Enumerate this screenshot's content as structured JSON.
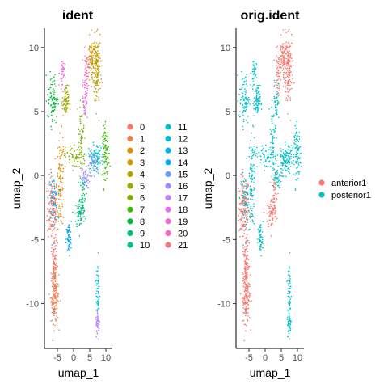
{
  "chart_data": [
    {
      "type": "scatter",
      "title": "ident",
      "xlabel": "umap_1",
      "ylabel": "umap_2",
      "xlim": [
        -9,
        12
      ],
      "ylim": [
        -13.5,
        11.5
      ],
      "xticks": [
        -5,
        0,
        5,
        10
      ],
      "xtick_labels": [
        "-5",
        "0",
        "5",
        "10"
      ],
      "yticks": [
        -10,
        -5,
        0,
        5,
        10
      ],
      "ytick_labels": [
        "-10",
        "-5",
        "0",
        "5",
        "10"
      ],
      "grid": false,
      "legend_placement": "right",
      "legend_columns": 2,
      "series": [
        {
          "name": "0",
          "color": "#F8766D",
          "cx": -6.5,
          "cy": -2.2
        },
        {
          "name": "1",
          "color": "#EF7F49",
          "cx": -5.8,
          "cy": -9.2
        },
        {
          "name": "2",
          "color": "#DE8C00",
          "cx": -3.8,
          "cy": -0.5
        },
        {
          "name": "3",
          "color": "#CD9600",
          "cx": 6.0,
          "cy": 9.0
        },
        {
          "name": "4",
          "color": "#B79F00",
          "cx": 7.0,
          "cy": 7.5
        },
        {
          "name": "5",
          "color": "#9DA700",
          "cx": -2.5,
          "cy": 5.8
        },
        {
          "name": "6",
          "color": "#7CAE00",
          "cx": 2.0,
          "cy": 1.5
        },
        {
          "name": "7",
          "color": "#3DB700",
          "cx": 10.0,
          "cy": 2.0
        },
        {
          "name": "8",
          "color": "#00BA38",
          "cx": -7.0,
          "cy": 6.5
        },
        {
          "name": "9",
          "color": "#00BF6F",
          "cx": 3.0,
          "cy": -2.0
        },
        {
          "name": "10",
          "color": "#00C08B",
          "cx": 2.0,
          "cy": -3.2
        },
        {
          "name": "11",
          "color": "#00BFC4",
          "cx": 7.0,
          "cy": 1.5
        },
        {
          "name": "12",
          "color": "#00BCD8",
          "cx": 7.5,
          "cy": -9.0
        },
        {
          "name": "13",
          "color": "#00B4EF",
          "cx": -6.2,
          "cy": -1.5
        },
        {
          "name": "14",
          "color": "#00A5FF",
          "cx": -1.5,
          "cy": -5.0
        },
        {
          "name": "15",
          "color": "#619CFF",
          "cx": 6.0,
          "cy": 1.0
        },
        {
          "name": "16",
          "color": "#9590FF",
          "cx": 3.5,
          "cy": -0.3
        },
        {
          "name": "17",
          "color": "#C77CFF",
          "cx": 7.5,
          "cy": -11.5
        },
        {
          "name": "18",
          "color": "#E76BF3",
          "cx": 3.5,
          "cy": 6.0
        },
        {
          "name": "19",
          "color": "#F564E3",
          "cx": -3.5,
          "cy": 8.0
        },
        {
          "name": "20",
          "color": "#FF62BC",
          "cx": 4.0,
          "cy": 8.5
        },
        {
          "name": "21",
          "color": "#FC717F",
          "cx": -6.0,
          "cy": -6.5
        }
      ]
    },
    {
      "type": "scatter",
      "title": "orig.ident",
      "xlabel": "umap_1",
      "ylabel": "umap_2",
      "xlim": [
        -9,
        12
      ],
      "ylim": [
        -13.5,
        11.5
      ],
      "xticks": [
        -5,
        0,
        5,
        10
      ],
      "xtick_labels": [
        "-5",
        "0",
        "5",
        "10"
      ],
      "yticks": [
        -10,
        -5,
        0,
        5,
        10
      ],
      "ytick_labels": [
        "-10",
        "-5",
        "0",
        "5",
        "10"
      ],
      "grid": false,
      "legend_placement": "right",
      "legend_columns": 1,
      "series": [
        {
          "name": "anterior1",
          "color": "#F8766D"
        },
        {
          "name": "posterior1",
          "color": "#00BFC4"
        }
      ]
    }
  ]
}
